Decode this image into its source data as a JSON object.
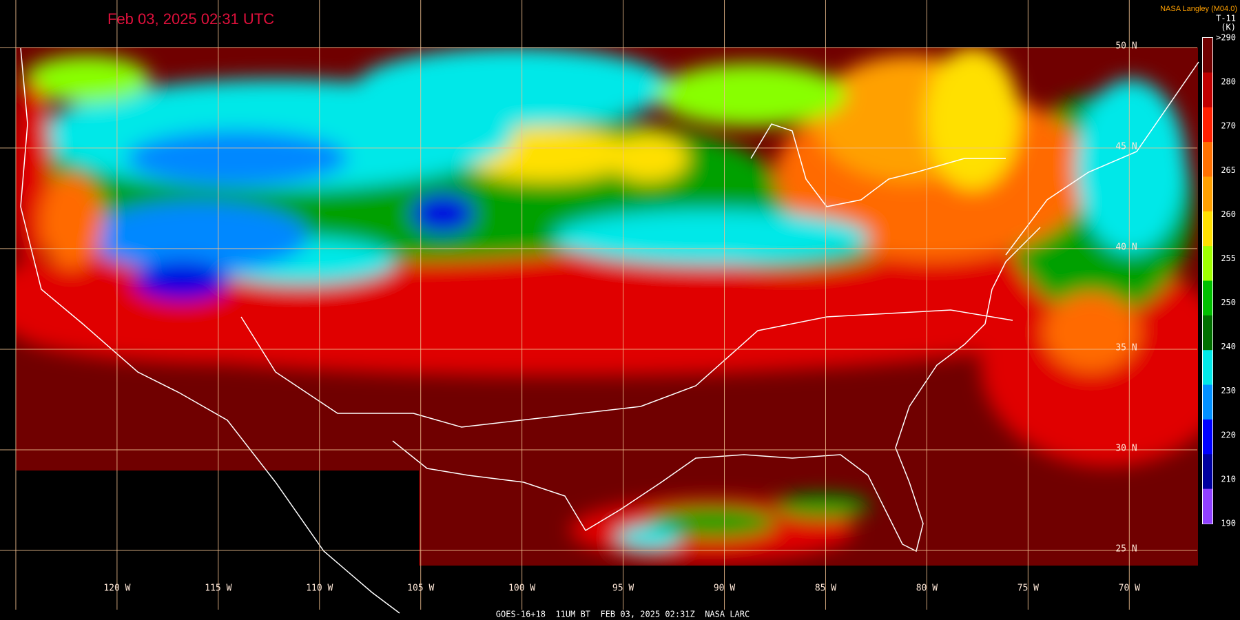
{
  "header": {
    "timestamp": "Feb 03, 2025 02:31 UTC",
    "source": "NASA Langley (M04.0)",
    "channel": "T-11",
    "unit": "(K)"
  },
  "colorbar": {
    "labels": [
      ">290",
      "280",
      "270",
      "265",
      "260",
      "255",
      "250",
      "240",
      "230",
      "220",
      "210",
      "190"
    ]
  },
  "map": {
    "latitude_labels": [
      "50 N",
      "45 N",
      "40 N",
      "35 N",
      "30 N",
      "25 N"
    ],
    "longitude_labels": [
      "120 W",
      "115 W",
      "110 W",
      "105 W",
      "100 W",
      "95 W",
      "90 W",
      "85 W",
      "80 W",
      "75 W",
      "70 W"
    ]
  },
  "footer": "GOES-16+18  11UM BT  FEB 03, 2025 02:31Z  NASA LARC"
}
